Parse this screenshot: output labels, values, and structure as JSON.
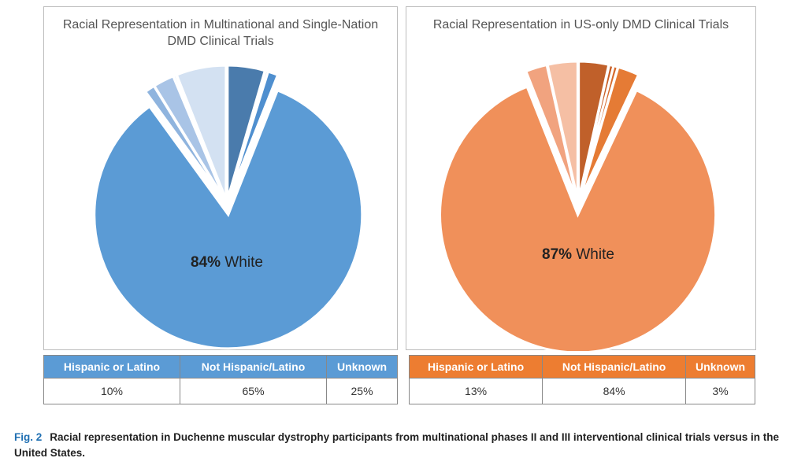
{
  "chart_data": [
    {
      "type": "pie",
      "title": "Racial Representation in Multinational and Single-Nation\nDMD Clinical Trials",
      "label": "84% White",
      "label_bold": "84%",
      "label_rest": " White",
      "slices": [
        {
          "value": 4.5,
          "color": "#4a7bac"
        },
        {
          "value": 0.3,
          "color": "#9fbfe0"
        },
        {
          "value": 1.2,
          "color": "#4f8fcf"
        },
        {
          "value": 84,
          "color": "#5b9bd5",
          "label": "White"
        },
        {
          "value": 1.2,
          "color": "#8fb4de"
        },
        {
          "value": 2.5,
          "color": "#a9c4e6"
        },
        {
          "value": 0.3,
          "color": "#c5d7ee"
        },
        {
          "value": 6,
          "color": "#d3e1f2"
        }
      ],
      "table": {
        "header_color": "#5b9bd5",
        "headers": [
          "Hispanic or Latino",
          "Not Hispanic/Latino",
          "Unknown"
        ],
        "values": [
          "10%",
          "65%",
          "25%"
        ]
      }
    },
    {
      "type": "pie",
      "title": "Racial Representation in US-only DMD Clinical Trials",
      "label": "87% White",
      "label_bold": "87%",
      "label_rest": " White",
      "slices": [
        {
          "value": 3.5,
          "color": "#c0602a"
        },
        {
          "value": 0.5,
          "color": "#c85e26"
        },
        {
          "value": 0.5,
          "color": "#d66a2c"
        },
        {
          "value": 2.5,
          "color": "#e57b35"
        },
        {
          "value": 87,
          "color": "#f0905a",
          "label": "White"
        },
        {
          "value": 2.5,
          "color": "#f1a37f"
        },
        {
          "value": 3.5,
          "color": "#f5bfa4"
        }
      ],
      "table": {
        "header_color": "#ed7d31",
        "headers": [
          "Hispanic or Latino",
          "Not Hispanic/Latino",
          "Unknown"
        ],
        "values": [
          "13%",
          "84%",
          "3%"
        ]
      }
    }
  ],
  "caption": {
    "fig": "Fig. 2",
    "text": "Racial representation in Duchenne muscular dystrophy participants from multinational phases II and III interventional clinical trials versus in the United States."
  }
}
